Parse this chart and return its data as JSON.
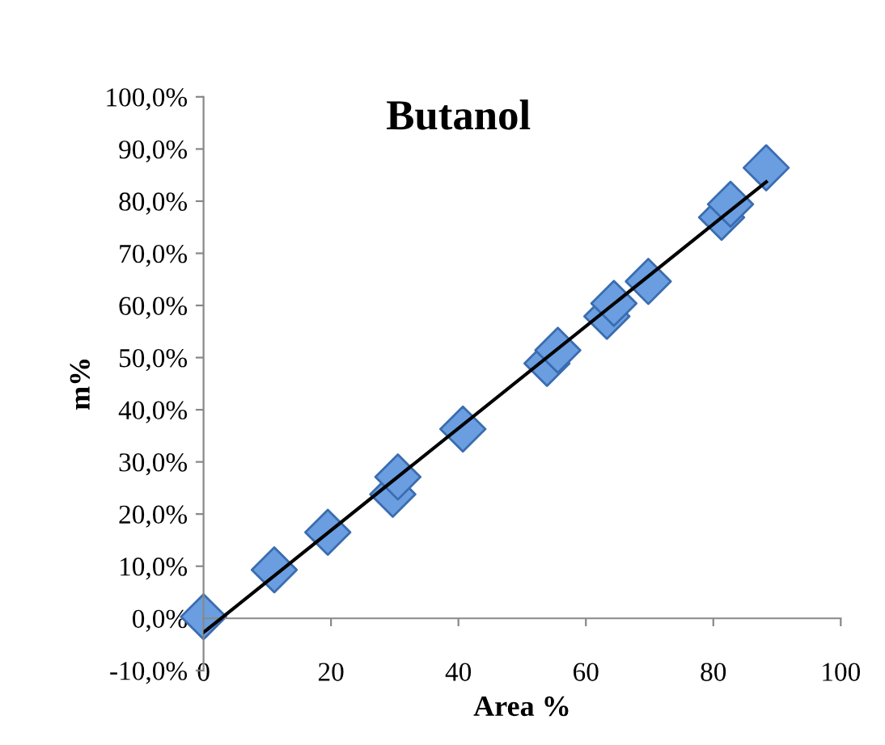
{
  "chart_data": {
    "type": "scatter",
    "title": "Butanol",
    "xlabel": "Area %",
    "ylabel": "m%",
    "series": [
      {
        "color": "#6a9ee0",
        "marker": "diamond",
        "x": [
          0,
          11.1,
          19.5,
          29.7,
          30.5,
          40.7,
          53.9,
          55.6,
          63.3,
          64.4,
          69.8,
          81.3,
          82.7,
          88.3
        ],
        "values": [
          0.3,
          9.3,
          16.5,
          23.8,
          27.1,
          36.3,
          48.9,
          51.4,
          57.9,
          60.4,
          64.6,
          76.9,
          79.4,
          86.4
        ]
      },
      {
        "type": "line",
        "color": "#000000",
        "marker": "none",
        "line_style": "solid",
        "x": [
          0,
          88.3
        ],
        "values": [
          -2.7,
          83.7
        ]
      }
    ],
    "xlim": [
      0,
      100
    ],
    "xticks": [
      0,
      20,
      40,
      60,
      80,
      100
    ],
    "ylim": [
      -10,
      100
    ],
    "yticks": [
      {
        "value": -10,
        "label": "-10,0%"
      },
      {
        "value": 0,
        "label": "0,0%"
      },
      {
        "value": 10,
        "label": "10,0%"
      },
      {
        "value": 20,
        "label": "20,0%"
      },
      {
        "value": 30,
        "label": "30,0%"
      },
      {
        "value": 40,
        "label": "40,0%"
      },
      {
        "value": 50,
        "label": "50,0%"
      },
      {
        "value": 60,
        "label": "60,0%"
      },
      {
        "value": 70,
        "label": "70,0%"
      },
      {
        "value": 80,
        "label": "80,0%"
      },
      {
        "value": 90,
        "label": "90,0%"
      },
      {
        "value": 100,
        "label": "100,0%"
      }
    ],
    "grid": false,
    "legend": false
  }
}
